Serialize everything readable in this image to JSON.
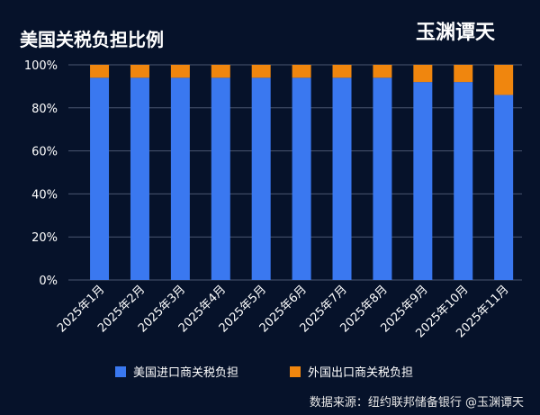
{
  "logo": "玉渊谭天",
  "source": "数据来源：纽约联邦储备银行 @玉渊谭天",
  "chart_data": {
    "type": "bar",
    "stacked": true,
    "title": "美国关税负担比例",
    "categories": [
      "2025年1月",
      "2025年2月",
      "2025年3月",
      "2025年4月",
      "2025年5月",
      "2025年6月",
      "2025年7月",
      "2025年8月",
      "2025年9月",
      "2025年10月",
      "2025年11月"
    ],
    "series": [
      {
        "name": "美国进口商关税负担",
        "color": "#3a78f0",
        "values": [
          94,
          94,
          94,
          94,
          94,
          94,
          94,
          94,
          92,
          92,
          86
        ]
      },
      {
        "name": "外国出口商关税负担",
        "color": "#f0860e",
        "values": [
          6,
          6,
          6,
          6,
          6,
          6,
          6,
          6,
          8,
          8,
          14
        ]
      }
    ],
    "yticks": [
      "0%",
      "20%",
      "40%",
      "60%",
      "80%",
      "100%"
    ],
    "ylim": [
      0,
      100
    ],
    "grid": true,
    "legend": "bottom"
  }
}
